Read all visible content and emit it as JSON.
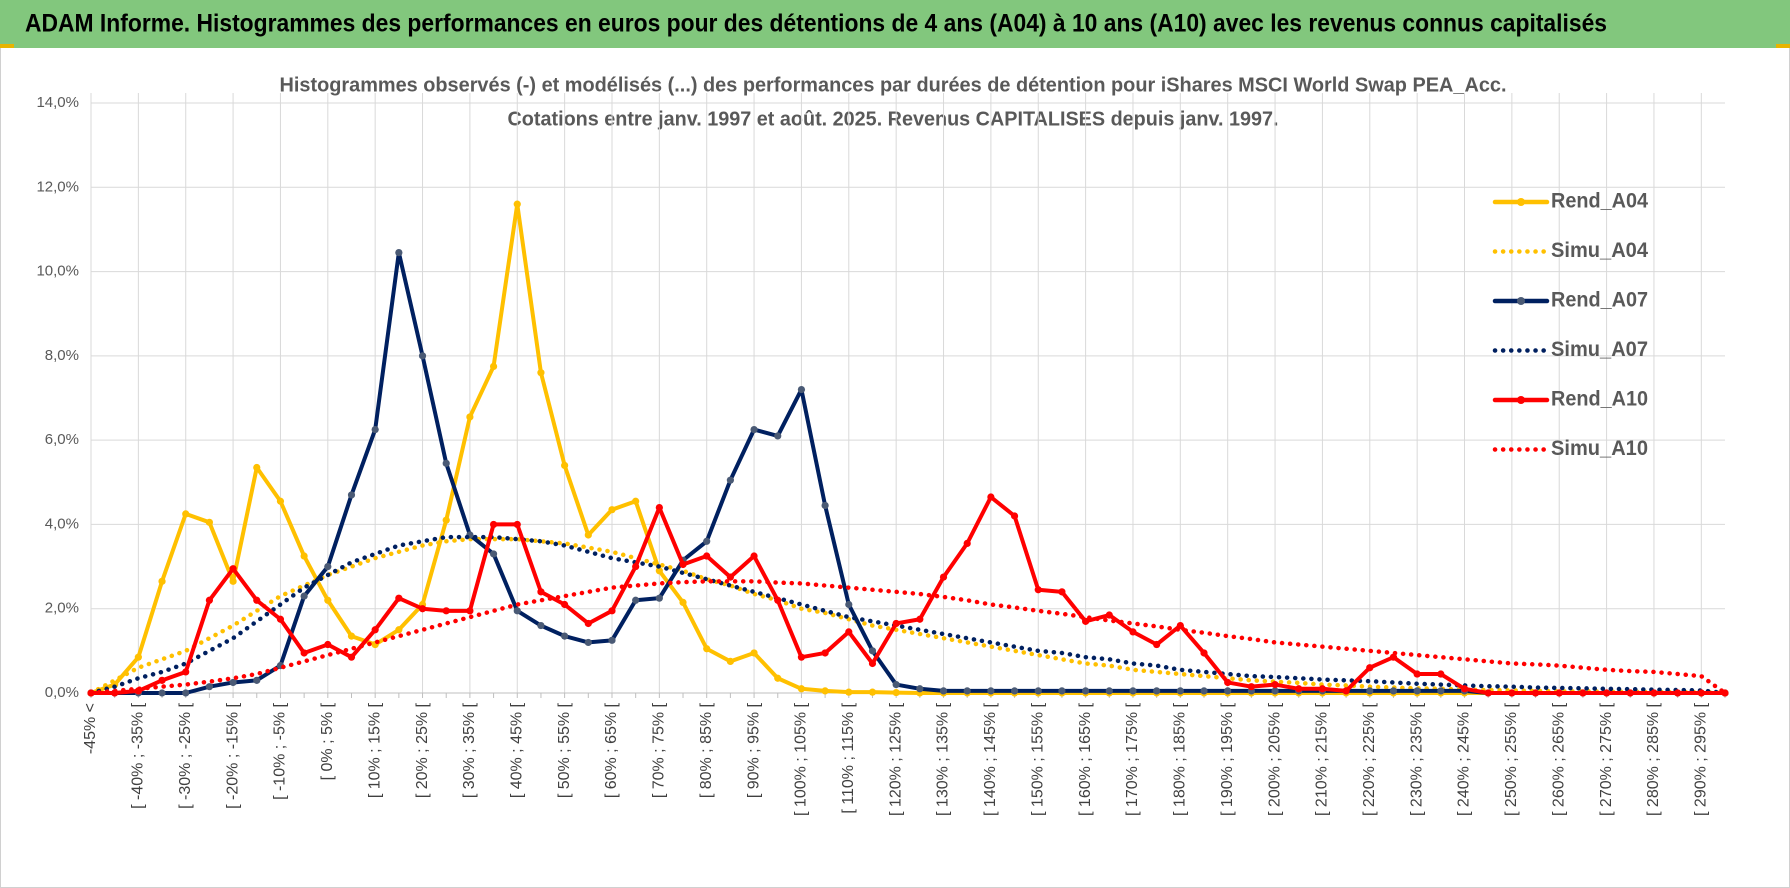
{
  "chart_data": {
    "type": "line",
    "title": "ADAM Informe. Histogrammes des performances en euros pour des détentions de 4 ans (A04) à 10 ans (A10) avec les revenus connus capitalisés",
    "subtitle": [
      "Histogrammes observés (-) et modélisés (...) des performances par durées de détention pour iShares MSCI World Swap PEA_Acc.",
      "Cotations entre janv. 1997 et août. 2025. Revenus CAPITALISES depuis janv. 1997."
    ],
    "categories": [
      "-45% <",
      null,
      "[ -40% ; -35% [",
      null,
      "[ -30% ; -25% [",
      null,
      "[ -20% ; -15% [",
      null,
      "[ -10% ; -5% [",
      null,
      "[ 0% ; 5% [",
      null,
      "[ 10% ; 15% [",
      null,
      "[ 20% ; 25% [",
      null,
      "[ 30% ; 35% [",
      null,
      "[ 40% ; 45% [",
      null,
      "[ 50% ; 55% [",
      null,
      "[ 60% ; 65% [",
      null,
      "[ 70% ; 75% [",
      null,
      "[ 80% ; 85% [",
      null,
      "[ 90% ; 95% [",
      null,
      "[ 100% ; 105% [",
      null,
      "[ 110% ; 115% [",
      null,
      "[ 120% ; 125% [",
      null,
      "[ 130% ; 135% [",
      null,
      "[ 140% ; 145% [",
      null,
      "[ 150% ; 155% [",
      null,
      "[ 160% ; 165% [",
      null,
      "[ 170% ; 175% [",
      null,
      "[ 180% ; 185% [",
      null,
      "[ 190% ; 195% [",
      null,
      "[ 200% ; 205% [",
      null,
      "[ 210% ; 215% [",
      null,
      "[ 220% ; 225% [",
      null,
      "[ 230% ; 235% [",
      null,
      "[ 240% ; 245% [",
      null,
      "[ 250% ; 255% [",
      null,
      "[ 260% ; 265% [",
      null,
      "[ 270% ; 275% [",
      null,
      "[ 280% ; 285% [",
      null,
      "[ 290% ; 295% [",
      null
    ],
    "series": [
      {
        "name": "Rend_A04",
        "color": "#ffc000",
        "marker_color": "#ffc000",
        "style": "solid",
        "values": [
          0,
          0.2,
          0.85,
          2.65,
          4.25,
          4.05,
          2.65,
          5.35,
          4.55,
          3.25,
          2.2,
          1.35,
          1.15,
          1.5,
          2.1,
          4.1,
          6.55,
          7.75,
          11.6,
          7.6,
          5.4,
          3.75,
          4.35,
          4.55,
          2.9,
          2.15,
          1.05,
          0.75,
          0.95,
          0.35,
          0.1,
          0.05,
          0.02,
          0.02,
          0.01,
          0,
          0,
          0,
          0,
          0,
          0,
          0,
          0,
          0,
          0,
          0,
          0,
          0,
          0,
          0,
          0,
          0,
          0,
          0,
          0,
          0,
          0,
          0,
          0,
          0,
          0,
          0,
          0,
          0,
          0,
          0,
          0,
          0,
          0,
          0
        ]
      },
      {
        "name": "Simu_A04",
        "color": "#ffc000",
        "style": "dotted",
        "values": [
          0,
          0.3,
          0.6,
          0.8,
          1.0,
          1.3,
          1.6,
          1.95,
          2.3,
          2.55,
          2.8,
          3.0,
          3.2,
          3.35,
          3.5,
          3.6,
          3.65,
          3.65,
          3.65,
          3.6,
          3.55,
          3.45,
          3.35,
          3.2,
          3.05,
          2.9,
          2.7,
          2.55,
          2.35,
          2.2,
          2.0,
          1.9,
          1.75,
          1.6,
          1.5,
          1.4,
          1.3,
          1.2,
          1.1,
          1.0,
          0.9,
          0.8,
          0.7,
          0.65,
          0.55,
          0.5,
          0.45,
          0.4,
          0.35,
          0.3,
          0.27,
          0.24,
          0.2,
          0.18,
          0.15,
          0.13,
          0.11,
          0.1,
          0.08,
          0.07,
          0.06,
          0.05,
          0.04,
          0.04,
          0.03,
          0.03,
          0.02,
          0.02,
          0.02,
          0
        ]
      },
      {
        "name": "Rend_A07",
        "color": "#002060",
        "marker_color": "#4a5a75",
        "style": "solid",
        "values": [
          0,
          0,
          0,
          0,
          0,
          0.15,
          0.25,
          0.3,
          0.65,
          2.3,
          3.0,
          4.7,
          6.25,
          10.45,
          8.0,
          5.45,
          3.75,
          3.3,
          1.95,
          1.6,
          1.35,
          1.2,
          1.25,
          2.2,
          2.25,
          3.15,
          3.6,
          5.05,
          6.25,
          6.1,
          7.2,
          4.45,
          2.1,
          1.0,
          0.2,
          0.1,
          0.05,
          0.05,
          0.05,
          0.05,
          0.05,
          0.05,
          0.05,
          0.05,
          0.05,
          0.05,
          0.05,
          0.05,
          0.05,
          0.05,
          0.05,
          0.05,
          0.05,
          0.05,
          0.05,
          0.05,
          0.05,
          0.05,
          0.05,
          0,
          0,
          0,
          0,
          0,
          0,
          0,
          0,
          0,
          0,
          0
        ]
      },
      {
        "name": "Simu_A07",
        "color": "#002060",
        "style": "dotted",
        "values": [
          0,
          0.15,
          0.35,
          0.5,
          0.7,
          1.0,
          1.3,
          1.7,
          2.1,
          2.5,
          2.8,
          3.1,
          3.3,
          3.5,
          3.6,
          3.7,
          3.7,
          3.7,
          3.65,
          3.6,
          3.5,
          3.35,
          3.2,
          3.1,
          3.0,
          2.85,
          2.7,
          2.55,
          2.4,
          2.25,
          2.1,
          1.95,
          1.8,
          1.7,
          1.6,
          1.5,
          1.4,
          1.3,
          1.2,
          1.1,
          1.0,
          0.95,
          0.85,
          0.8,
          0.7,
          0.65,
          0.55,
          0.5,
          0.45,
          0.4,
          0.38,
          0.35,
          0.32,
          0.3,
          0.28,
          0.25,
          0.22,
          0.2,
          0.18,
          0.16,
          0.15,
          0.13,
          0.12,
          0.11,
          0.1,
          0.09,
          0.08,
          0.07,
          0.06,
          0
        ]
      },
      {
        "name": "Rend_A10",
        "color": "#ff0000",
        "marker_color": "#ff0000",
        "style": "solid",
        "values": [
          0,
          0,
          0.05,
          0.3,
          0.5,
          2.2,
          2.95,
          2.2,
          1.75,
          0.95,
          1.15,
          0.85,
          1.5,
          2.25,
          2.0,
          1.95,
          1.95,
          4.0,
          4.0,
          2.4,
          2.1,
          1.65,
          1.95,
          3.0,
          4.4,
          3.05,
          3.25,
          2.75,
          3.25,
          2.2,
          0.85,
          0.95,
          1.45,
          0.7,
          1.65,
          1.75,
          2.75,
          3.55,
          4.65,
          4.2,
          2.45,
          2.4,
          1.7,
          1.85,
          1.45,
          1.15,
          1.6,
          0.95,
          0.25,
          0.15,
          0.2,
          0.1,
          0.1,
          0.05,
          0.6,
          0.85,
          0.45,
          0.45,
          0.1,
          0,
          0,
          0,
          0,
          0,
          0,
          0,
          0,
          0,
          0,
          0
        ]
      },
      {
        "name": "Simu_A10",
        "color": "#ff0000",
        "style": "dotted",
        "values": [
          0,
          0.05,
          0.1,
          0.15,
          0.2,
          0.27,
          0.35,
          0.45,
          0.6,
          0.75,
          0.9,
          1.05,
          1.2,
          1.35,
          1.5,
          1.65,
          1.8,
          1.95,
          2.1,
          2.2,
          2.3,
          2.4,
          2.5,
          2.55,
          2.6,
          2.63,
          2.65,
          2.65,
          2.65,
          2.62,
          2.6,
          2.55,
          2.5,
          2.45,
          2.4,
          2.35,
          2.28,
          2.2,
          2.1,
          2.03,
          1.95,
          1.88,
          1.8,
          1.72,
          1.65,
          1.58,
          1.5,
          1.43,
          1.35,
          1.28,
          1.2,
          1.15,
          1.1,
          1.05,
          1.0,
          0.95,
          0.9,
          0.85,
          0.8,
          0.75,
          0.7,
          0.68,
          0.65,
          0.6,
          0.55,
          0.52,
          0.5,
          0.45,
          0.4,
          0
        ]
      }
    ],
    "ylim": [
      0,
      14
    ],
    "yticks": [
      {
        "value": 0,
        "label": "0,0%"
      },
      {
        "value": 2,
        "label": "2,0%"
      },
      {
        "value": 4,
        "label": "4,0%"
      },
      {
        "value": 6,
        "label": "6,0%"
      },
      {
        "value": 8,
        "label": "8,0%"
      },
      {
        "value": 10,
        "label": "10,0%"
      },
      {
        "value": 12,
        "label": "12,0%"
      },
      {
        "value": 14,
        "label": "14,0%"
      }
    ],
    "grid": true,
    "legend": "right"
  }
}
